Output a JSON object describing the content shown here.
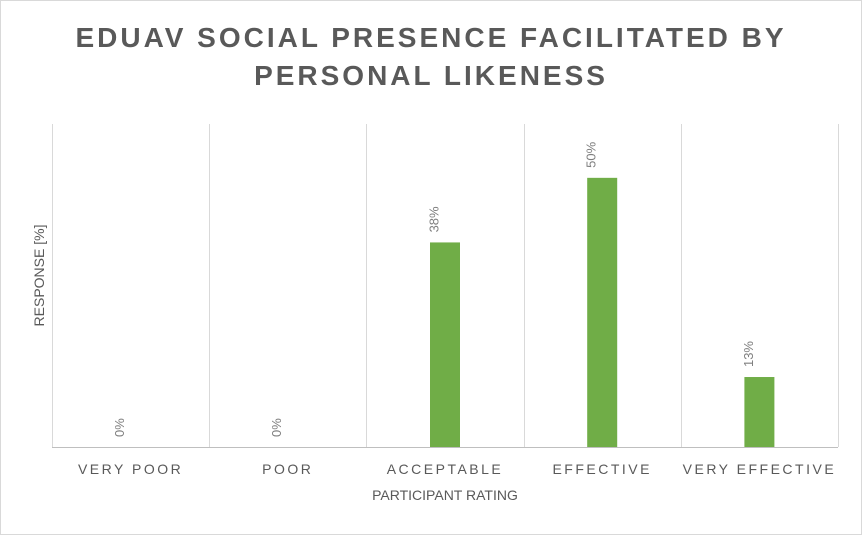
{
  "chart_data": {
    "type": "bar",
    "title": "EDUAV SOCIAL PRESENCE FACILITATED BY PERSONAL LIKENESS",
    "xlabel": "PARTICIPANT RATING",
    "ylabel": "RESPONSE [%]",
    "categories": [
      "VERY POOR",
      "POOR",
      "ACCEPTABLE",
      "EFFECTIVE",
      "VERY EFFECTIVE"
    ],
    "values": [
      0,
      0,
      38,
      50,
      13
    ],
    "data_labels": [
      "0%",
      "0%",
      "38%",
      "50%",
      "13%"
    ],
    "ylim": [
      0,
      60
    ],
    "grid": "vertical category separators",
    "legend": "none",
    "colors": {
      "bar": "#70ad47"
    }
  }
}
